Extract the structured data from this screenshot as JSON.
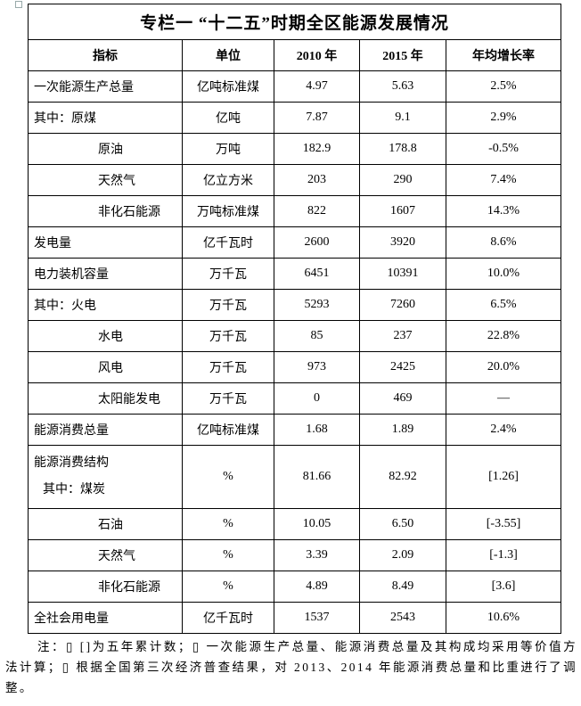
{
  "title": "专栏一 “十二五”时期全区能源发展情况",
  "headers": [
    "指标",
    "单位",
    "2010 年",
    "2015 年",
    "年均增长率"
  ],
  "rows": [
    {
      "indicator": "一次能源生产总量",
      "unit": "亿吨标准煤",
      "y2010": "4.97",
      "y2015": "5.63",
      "growth": "2.5%",
      "level": 0
    },
    {
      "indicator": "其中：原煤",
      "unit": "亿吨",
      "y2010": "7.87",
      "y2015": "9.1",
      "growth": "2.9%",
      "level": 1
    },
    {
      "indicator": "原油",
      "unit": "万吨",
      "y2010": "182.9",
      "y2015": "178.8",
      "growth": "-0.5%",
      "level": 2
    },
    {
      "indicator": "天然气",
      "unit": "亿立方米",
      "y2010": "203",
      "y2015": "290",
      "growth": "7.4%",
      "level": 2
    },
    {
      "indicator": "非化石能源",
      "unit": "万吨标准煤",
      "y2010": "822",
      "y2015": "1607",
      "growth": "14.3%",
      "level": 2
    },
    {
      "indicator": "发电量",
      "unit": "亿千瓦时",
      "y2010": "2600",
      "y2015": "3920",
      "growth": "8.6%",
      "level": 0
    },
    {
      "indicator": "电力装机容量",
      "unit": "万千瓦",
      "y2010": "6451",
      "y2015": "10391",
      "growth": "10.0%",
      "level": 0
    },
    {
      "indicator": "其中：火电",
      "unit": "万千瓦",
      "y2010": "5293",
      "y2015": "7260",
      "growth": "6.5%",
      "level": 1
    },
    {
      "indicator": "水电",
      "unit": "万千瓦",
      "y2010": "85",
      "y2015": "237",
      "growth": "22.8%",
      "level": 2
    },
    {
      "indicator": "风电",
      "unit": "万千瓦",
      "y2010": "973",
      "y2015": "2425",
      "growth": "20.0%",
      "level": 2
    },
    {
      "indicator": "太阳能发电",
      "unit": "万千瓦",
      "y2010": "0",
      "y2015": "469",
      "growth": "—",
      "level": 2
    },
    {
      "indicator": "能源消费总量",
      "unit": "亿吨标准煤",
      "y2010": "1.68",
      "y2015": "1.89",
      "growth": "2.4%",
      "level": 0
    },
    {
      "indicator": "能源消费结构",
      "sub": "其中：煤炭",
      "unit": "%",
      "y2010": "81.66",
      "y2015": "82.92",
      "growth": "[1.26]",
      "level": 0
    },
    {
      "indicator": "石油",
      "unit": "%",
      "y2010": "10.05",
      "y2015": "6.50",
      "growth": "[-3.55]",
      "level": 2
    },
    {
      "indicator": "天然气",
      "unit": "%",
      "y2010": "3.39",
      "y2015": "2.09",
      "growth": "[-1.3]",
      "level": 2
    },
    {
      "indicator": "非化石能源",
      "unit": "%",
      "y2010": "4.89",
      "y2015": "8.49",
      "growth": "[3.6]",
      "level": 2
    },
    {
      "indicator": "全社会用电量",
      "unit": "亿千瓦时",
      "y2010": "1537",
      "y2015": "2543",
      "growth": "10.6%",
      "level": 0
    }
  ],
  "note": "注：▯ []为五年累计数；▯ 一次能源生产总量、能源消费总量及其构成均采用等价值方法计算；▯ 根据全国第三次经济普查结果，对 2013、2014 年能源消费总量和比重进行了调整。"
}
